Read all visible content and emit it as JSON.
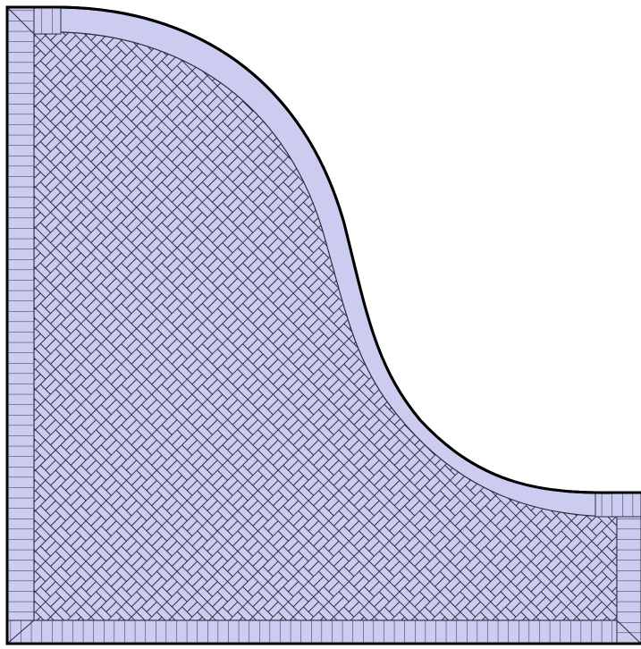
{
  "diagram": {
    "kind": "paving-plan",
    "field_pattern": "herringbone",
    "border_pattern": "soldier-course",
    "curved_edge": "plain-band",
    "colors": {
      "background": "#ffffff",
      "paving_fill": "#ccccf0",
      "joint_line": "#2b2b3a",
      "outline": "#000000"
    }
  }
}
